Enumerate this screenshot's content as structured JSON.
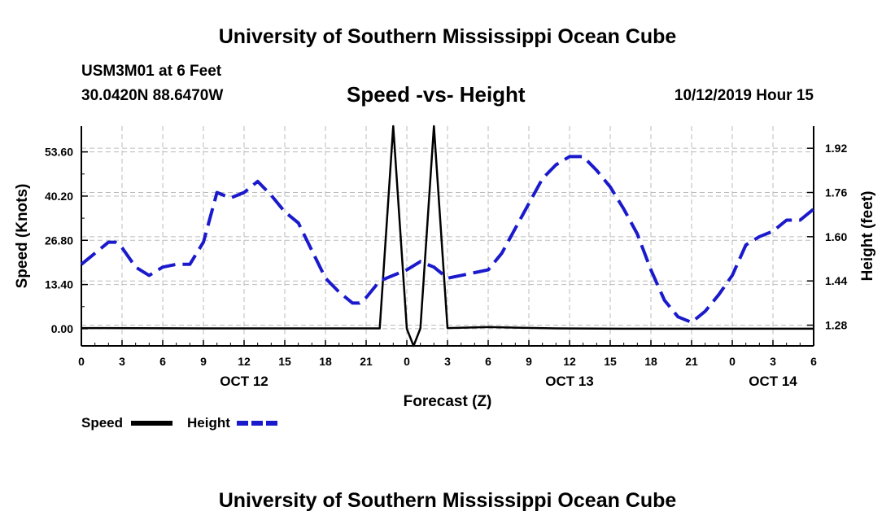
{
  "page": {
    "top_title": "University of Southern Mississippi Ocean Cube",
    "bottom_title": "University of Southern Mississippi Ocean Cube",
    "station": "USM3M01 at 6 Feet",
    "coords": "30.0420N 88.6470W",
    "plot_title": "Speed -vs- Height",
    "timestamp": "10/12/2019 Hour 15"
  },
  "colors": {
    "speed": "#000000",
    "height": "#1a1acc",
    "grid": "#bbbbbb"
  },
  "chart_data": {
    "type": "line",
    "title": "Speed -vs- Height",
    "xlabel": "Forecast (Z)",
    "ylabel_left": "Speed (Knots)",
    "ylabel_right": "Height (feet)",
    "x_range": [
      0,
      54
    ],
    "x_ticks": [
      {
        "x": 0,
        "label": "0"
      },
      {
        "x": 3,
        "label": "3"
      },
      {
        "x": 6,
        "label": "6"
      },
      {
        "x": 9,
        "label": "9"
      },
      {
        "x": 12,
        "label": "12"
      },
      {
        "x": 15,
        "label": "15"
      },
      {
        "x": 18,
        "label": "18"
      },
      {
        "x": 21,
        "label": "21"
      },
      {
        "x": 24,
        "label": "0"
      },
      {
        "x": 27,
        "label": "3"
      },
      {
        "x": 30,
        "label": "6"
      },
      {
        "x": 33,
        "label": "9"
      },
      {
        "x": 36,
        "label": "12"
      },
      {
        "x": 39,
        "label": "15"
      },
      {
        "x": 42,
        "label": "18"
      },
      {
        "x": 45,
        "label": "21"
      },
      {
        "x": 48,
        "label": "0"
      },
      {
        "x": 51,
        "label": "3"
      },
      {
        "x": 54,
        "label": "6"
      }
    ],
    "day_labels": [
      {
        "x": 12,
        "label": "OCT 12"
      },
      {
        "x": 36,
        "label": "OCT 13"
      },
      {
        "x": 51,
        "label": "OCT 14"
      }
    ],
    "y_left": {
      "range": [
        -5.2,
        61.4
      ],
      "ticks": [
        0.0,
        13.4,
        26.8,
        40.2,
        53.6
      ],
      "tick_labels": [
        "0.00",
        "13.40",
        "26.80",
        "40.20",
        "53.60"
      ]
    },
    "y_right": {
      "range": [
        1.205,
        2.0
      ],
      "ticks": [
        1.28,
        1.44,
        1.6,
        1.76,
        1.92
      ],
      "tick_labels": [
        "1.28",
        "1.44",
        "1.60",
        "1.76",
        "1.92"
      ]
    },
    "legend": [
      {
        "name": "Speed",
        "style": "solid"
      },
      {
        "name": "Height",
        "style": "dashed"
      }
    ],
    "series": [
      {
        "name": "Speed",
        "axis": "left",
        "x": [
          0,
          10,
          20,
          22,
          23,
          24,
          24.5,
          25,
          26,
          27,
          30,
          35,
          40,
          45,
          50,
          54
        ],
        "values": [
          0.2,
          0.1,
          0.1,
          0.1,
          61.4,
          0.0,
          -5.2,
          0.1,
          61.4,
          0.2,
          0.5,
          0.1,
          0.0,
          0.0,
          0.0,
          0.0
        ]
      },
      {
        "name": "Height",
        "axis": "right",
        "x": [
          0,
          1,
          2,
          2.5,
          3,
          4,
          5,
          6,
          7,
          8,
          9,
          10,
          11,
          12,
          13,
          14,
          15,
          16,
          17,
          18,
          19,
          20,
          20.5,
          21,
          22,
          23,
          24,
          25,
          26,
          27,
          28,
          29,
          30,
          31,
          32,
          33,
          34,
          35,
          36,
          37,
          38,
          39,
          40,
          41,
          42,
          43,
          44,
          45,
          46,
          47,
          48,
          49,
          50,
          51,
          52,
          53,
          54
        ],
        "values": [
          1.5,
          1.54,
          1.58,
          1.58,
          1.56,
          1.49,
          1.46,
          1.49,
          1.5,
          1.5,
          1.58,
          1.76,
          1.74,
          1.76,
          1.8,
          1.75,
          1.69,
          1.65,
          1.55,
          1.45,
          1.4,
          1.36,
          1.36,
          1.38,
          1.44,
          1.46,
          1.48,
          1.51,
          1.49,
          1.45,
          1.46,
          1.47,
          1.48,
          1.54,
          1.63,
          1.72,
          1.81,
          1.86,
          1.89,
          1.89,
          1.84,
          1.78,
          1.7,
          1.61,
          1.48,
          1.37,
          1.31,
          1.29,
          1.33,
          1.39,
          1.46,
          1.57,
          1.6,
          1.62,
          1.66,
          1.66,
          1.7
        ]
      }
    ]
  }
}
